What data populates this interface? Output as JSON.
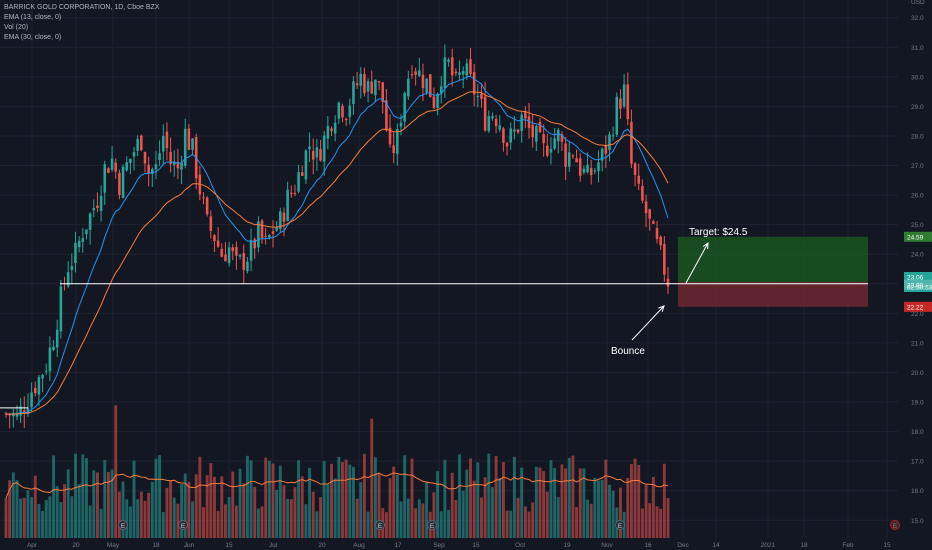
{
  "legend": {
    "symbol": "BARRICK GOLD CORPORATION, 1D, Cboe BZX",
    "ema13": "EMA (13, close, 0)",
    "vol": "Vol (20)",
    "ema30": "EMA (30, close, 0)"
  },
  "currency": "USD",
  "top_label": "32.48",
  "colors": {
    "up": "#26a69a",
    "down": "#ef5350",
    "ema13": "#2196f3",
    "ema30": "#f57c3a",
    "bg": "#131722",
    "grid": "#1f2330"
  },
  "annotations": {
    "target_text": "Target: $24.5",
    "bounce_text": "Bounce",
    "event_marker": "E"
  },
  "price_labels": {
    "target": "24.59",
    "current": "23.06",
    "countdown": "02:50:53",
    "support": "23.00",
    "stop": "22.22"
  },
  "chart_data": {
    "type": "candlestick",
    "title": "BARRICK GOLD CORPORATION, 1D, Cboe BZX",
    "ylabel": "USD",
    "ylim": [
      14.4,
      32.6
    ],
    "y_ticks": [
      15.0,
      16.0,
      17.0,
      18.0,
      19.0,
      20.0,
      21.0,
      22.0,
      23.0,
      24.0,
      25.0,
      26.0,
      27.0,
      28.0,
      29.0,
      30.0,
      31.0,
      32.0
    ],
    "x_ticks": [
      "Apr",
      "20",
      "May",
      "18",
      "Jun",
      "15",
      "Jul",
      "20",
      "Aug",
      "17",
      "Sep",
      "15",
      "Oct",
      "19",
      "Nov",
      "16",
      "Dec",
      "14",
      "2021",
      "18",
      "Feb",
      "15"
    ],
    "close_path": [
      18.6,
      18.5,
      18.9,
      19.4,
      19.8,
      20.3,
      21.2,
      22.5,
      23.6,
      24.0,
      24.8,
      25.3,
      25.9,
      26.9,
      27.2,
      26.4,
      27.0,
      27.5,
      27.9,
      26.8,
      26.9,
      28.0,
      27.1,
      26.9,
      28.1,
      27.5,
      26.2,
      25.0,
      24.6,
      24.0,
      24.2,
      23.6,
      23.8,
      24.1,
      24.7,
      24.3,
      24.8,
      25.1,
      25.9,
      26.3,
      27.1,
      27.7,
      27.3,
      27.9,
      28.6,
      29.1,
      28.9,
      29.5,
      30.0,
      29.6,
      30.0,
      29.2,
      27.3,
      27.9,
      29.6,
      30.5,
      30.1,
      29.8,
      29.2,
      30.1,
      30.4,
      29.7,
      30.3,
      29.8,
      29.3,
      28.6,
      28.8,
      28.5,
      27.8,
      28.1,
      28.6,
      28.2,
      27.9,
      27.5,
      27.9,
      28.0,
      27.3,
      27.5,
      26.9,
      26.6,
      26.9,
      27.3,
      27.9,
      29.0,
      29.5,
      27.0,
      26.0,
      25.4,
      24.6,
      23.9,
      23.1
    ],
    "volume_ylim": [
      0,
      65
    ],
    "annotation_levels": {
      "target": 24.59,
      "entry": 23.06,
      "stop": 22.22,
      "support": 23.0
    }
  }
}
